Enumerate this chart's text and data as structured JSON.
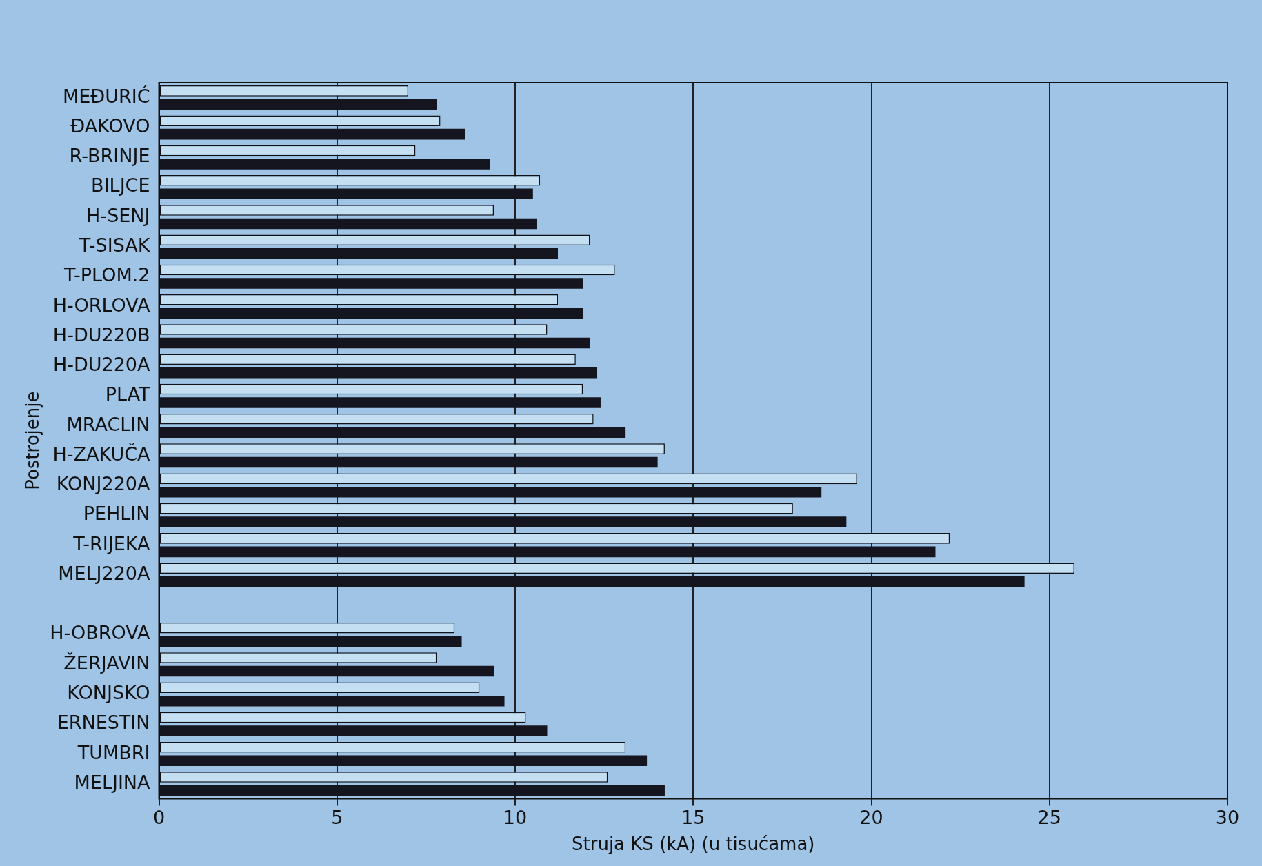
{
  "chart_data": {
    "type": "bar",
    "orientation": "horizontal",
    "xlabel": "Struja KS (kA) (u tisućama)",
    "ylabel": "Postrojenje",
    "categories": [
      "MEĐURIĆ",
      "ĐAKOVO",
      "R-BRINJE",
      "BILJCE",
      "H-SENJ",
      "T-SISAK",
      "T-PLOM.2",
      "H-ORLOVA",
      "H-DU220B",
      "H-DU220A",
      "PLAT",
      "MRACLIN",
      "H-ZAKUČA",
      "KONJ220A",
      "PEHLIN",
      "T-RIJEKA",
      "MELJ220A",
      null,
      "H-OBROVA",
      "ŽERJAVIN",
      "KONJSKO",
      "ERNESTIN",
      "TUMBRI",
      "MELJINA"
    ],
    "series": [
      {
        "color": "#c4def2",
        "values": [
          7.0,
          7.9,
          7.2,
          10.7,
          9.4,
          12.1,
          12.8,
          11.2,
          10.9,
          11.7,
          11.9,
          12.2,
          14.2,
          19.6,
          17.8,
          22.2,
          25.7,
          null,
          8.3,
          7.8,
          9.0,
          10.3,
          13.1,
          12.6
        ]
      },
      {
        "color": "#15151f",
        "values": [
          7.8,
          8.6,
          9.3,
          10.5,
          10.6,
          11.2,
          11.9,
          11.9,
          12.1,
          12.3,
          12.4,
          13.1,
          14.0,
          18.6,
          19.3,
          21.8,
          24.3,
          null,
          8.5,
          9.4,
          9.7,
          10.9,
          13.7,
          14.2
        ]
      }
    ],
    "xlim": [
      0,
      30
    ],
    "xticks": [
      0,
      5,
      10,
      15,
      20,
      25,
      30
    ],
    "grid": "x",
    "legend": false
  }
}
